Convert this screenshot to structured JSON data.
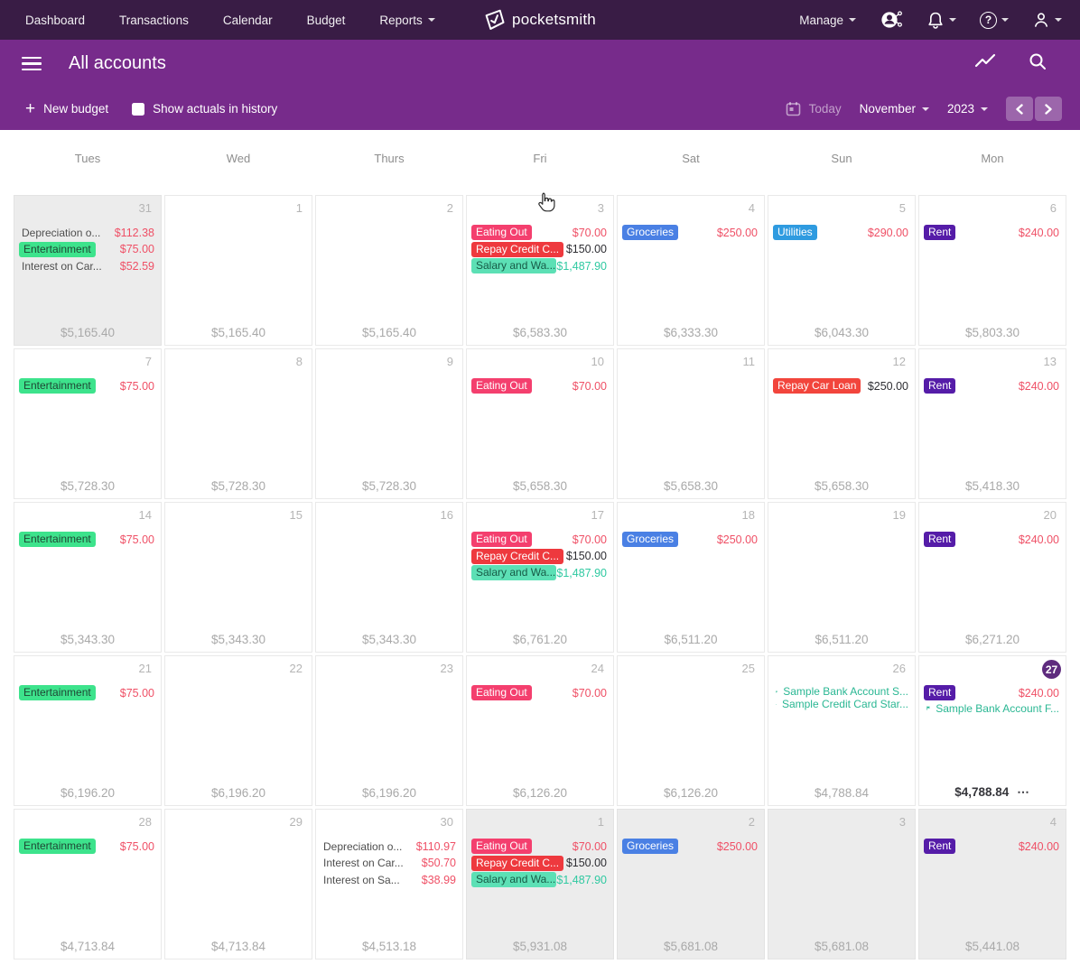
{
  "nav": {
    "left": [
      {
        "label": "Dashboard",
        "dropdown": false
      },
      {
        "label": "Transactions",
        "dropdown": false
      },
      {
        "label": "Calendar",
        "dropdown": false
      },
      {
        "label": "Budget",
        "dropdown": false
      },
      {
        "label": "Reports",
        "dropdown": true
      }
    ],
    "logo_text": "pocketsmith",
    "manage": "Manage",
    "right_icons": [
      "advisor-icon",
      "notifications-icon",
      "help-icon",
      "account-icon"
    ]
  },
  "header": {
    "title": "All accounts",
    "icons": [
      "trend-icon",
      "search-icon"
    ]
  },
  "toolbar": {
    "new_budget": "New budget",
    "show_actuals": "Show actuals in history",
    "today": "Today",
    "month": "November",
    "year": "2023"
  },
  "calendar": {
    "weekdays": [
      "Tues",
      "Wed",
      "Thurs",
      "Fri",
      "Sat",
      "Sun",
      "Mon"
    ],
    "categories": {
      "entertainment": {
        "name": "Entertainment",
        "bg": "#3DE38C",
        "fg": "#1F4634"
      },
      "eating_out": {
        "name": "Eating Out",
        "bg": "#F43F6E",
        "fg": "#FFFFFF"
      },
      "repay_credit": {
        "name": "Repay Credit Card",
        "bg": "#EE393E",
        "fg": "#FFFFFF"
      },
      "salary": {
        "name": "Salary and Wages",
        "bg": "#5CE0B5",
        "fg": "#175A46"
      },
      "groceries": {
        "name": "Groceries",
        "bg": "#4A80E4",
        "fg": "#FFFFFF"
      },
      "utilities": {
        "name": "Utilities",
        "bg": "#2F9BE0",
        "fg": "#FFFFFF"
      },
      "rent": {
        "name": "Rent",
        "bg": "#551CA8",
        "fg": "#FFFFFF"
      },
      "repay_car": {
        "name": "Repay Car Loan",
        "bg": "#F2453C",
        "fg": "#FFFFFF"
      }
    },
    "weeks": [
      {
        "days": [
          {
            "num": "31",
            "out": true,
            "entries": [
              {
                "kind": "text",
                "label": "Depreciation o...",
                "amount": "$112.38",
                "amount_style": "expense"
              },
              {
                "kind": "pill",
                "cat": "entertainment",
                "label": "Entertainment",
                "amount": "$75.00",
                "amount_style": "expense"
              },
              {
                "kind": "text",
                "label": "Interest on Car...",
                "amount": "$52.59",
                "amount_style": "expense"
              }
            ],
            "total": "$5,165.40"
          },
          {
            "num": "1",
            "entries": [],
            "total": "$5,165.40"
          },
          {
            "num": "2",
            "entries": [],
            "total": "$5,165.40"
          },
          {
            "num": "3",
            "entries": [
              {
                "kind": "pill",
                "cat": "eating_out",
                "label": "Eating Out",
                "amount": "$70.00",
                "amount_style": "expense"
              },
              {
                "kind": "pill",
                "cat": "repay_credit",
                "label": "Repay Credit C...",
                "amount": "$150.00",
                "amount_style": "transfer"
              },
              {
                "kind": "pill",
                "cat": "salary",
                "label": "Salary and Wa...",
                "amount": "$1,487.90",
                "amount_style": "income"
              }
            ],
            "total": "$6,583.30"
          },
          {
            "num": "4",
            "entries": [
              {
                "kind": "pill",
                "cat": "groceries",
                "label": "Groceries",
                "amount": "$250.00",
                "amount_style": "expense"
              }
            ],
            "total": "$6,333.30"
          },
          {
            "num": "5",
            "entries": [
              {
                "kind": "pill",
                "cat": "utilities",
                "label": "Utilities",
                "amount": "$290.00",
                "amount_style": "expense"
              }
            ],
            "total": "$6,043.30"
          },
          {
            "num": "6",
            "entries": [
              {
                "kind": "pill",
                "cat": "rent",
                "label": "Rent",
                "amount": "$240.00",
                "amount_style": "expense"
              }
            ],
            "total": "$5,803.30"
          }
        ]
      },
      {
        "days": [
          {
            "num": "7",
            "entries": [
              {
                "kind": "pill",
                "cat": "entertainment",
                "label": "Entertainment",
                "amount": "$75.00",
                "amount_style": "expense"
              }
            ],
            "total": "$5,728.30"
          },
          {
            "num": "8",
            "entries": [],
            "total": "$5,728.30"
          },
          {
            "num": "9",
            "entries": [],
            "total": "$5,728.30"
          },
          {
            "num": "10",
            "entries": [
              {
                "kind": "pill",
                "cat": "eating_out",
                "label": "Eating Out",
                "amount": "$70.00",
                "amount_style": "expense"
              }
            ],
            "total": "$5,658.30"
          },
          {
            "num": "11",
            "entries": [],
            "total": "$5,658.30"
          },
          {
            "num": "12",
            "entries": [
              {
                "kind": "pill",
                "cat": "repay_car",
                "label": "Repay Car Loan",
                "amount": "$250.00",
                "amount_style": "transfer"
              }
            ],
            "total": "$5,658.30"
          },
          {
            "num": "13",
            "entries": [
              {
                "kind": "pill",
                "cat": "rent",
                "label": "Rent",
                "amount": "$240.00",
                "amount_style": "expense"
              }
            ],
            "total": "$5,418.30"
          }
        ]
      },
      {
        "days": [
          {
            "num": "14",
            "entries": [
              {
                "kind": "pill",
                "cat": "entertainment",
                "label": "Entertainment",
                "amount": "$75.00",
                "amount_style": "expense"
              }
            ],
            "total": "$5,343.30"
          },
          {
            "num": "15",
            "entries": [],
            "total": "$5,343.30"
          },
          {
            "num": "16",
            "entries": [],
            "total": "$5,343.30"
          },
          {
            "num": "17",
            "entries": [
              {
                "kind": "pill",
                "cat": "eating_out",
                "label": "Eating Out",
                "amount": "$70.00",
                "amount_style": "expense"
              },
              {
                "kind": "pill",
                "cat": "repay_credit",
                "label": "Repay Credit C...",
                "amount": "$150.00",
                "amount_style": "transfer"
              },
              {
                "kind": "pill",
                "cat": "salary",
                "label": "Salary and Wa...",
                "amount": "$1,487.90",
                "amount_style": "income"
              }
            ],
            "total": "$6,761.20"
          },
          {
            "num": "18",
            "entries": [
              {
                "kind": "pill",
                "cat": "groceries",
                "label": "Groceries",
                "amount": "$250.00",
                "amount_style": "expense"
              }
            ],
            "total": "$6,511.20"
          },
          {
            "num": "19",
            "entries": [],
            "total": "$6,511.20"
          },
          {
            "num": "20",
            "entries": [
              {
                "kind": "pill",
                "cat": "rent",
                "label": "Rent",
                "amount": "$240.00",
                "amount_style": "expense"
              }
            ],
            "total": "$6,271.20"
          }
        ]
      },
      {
        "days": [
          {
            "num": "21",
            "entries": [
              {
                "kind": "pill",
                "cat": "entertainment",
                "label": "Entertainment",
                "amount": "$75.00",
                "amount_style": "expense"
              }
            ],
            "total": "$6,196.20"
          },
          {
            "num": "22",
            "entries": [],
            "total": "$6,196.20"
          },
          {
            "num": "23",
            "entries": [],
            "total": "$6,196.20"
          },
          {
            "num": "24",
            "entries": [
              {
                "kind": "pill",
                "cat": "eating_out",
                "label": "Eating Out",
                "amount": "$70.00",
                "amount_style": "expense"
              }
            ],
            "total": "$6,126.20"
          },
          {
            "num": "25",
            "entries": [],
            "total": "$6,126.20"
          },
          {
            "num": "26",
            "entries": [
              {
                "kind": "flag",
                "label": "Sample Bank Account S..."
              },
              {
                "kind": "flag",
                "label": "Sample Credit Card Star..."
              }
            ],
            "total": "$4,788.84"
          },
          {
            "num": "27",
            "today": true,
            "entries": [
              {
                "kind": "pill",
                "cat": "rent",
                "label": "Rent",
                "amount": "$240.00",
                "amount_style": "expense"
              },
              {
                "kind": "flag",
                "label": "Sample Bank Account F..."
              }
            ],
            "total": "$4,788.84",
            "total_emphasis": true,
            "ellipsis": "⋯"
          }
        ]
      },
      {
        "days": [
          {
            "num": "28",
            "entries": [
              {
                "kind": "pill",
                "cat": "entertainment",
                "label": "Entertainment",
                "amount": "$75.00",
                "amount_style": "expense"
              }
            ],
            "total": "$4,713.84"
          },
          {
            "num": "29",
            "entries": [],
            "total": "$4,713.84"
          },
          {
            "num": "30",
            "entries": [
              {
                "kind": "text",
                "label": "Depreciation o...",
                "amount": "$110.97",
                "amount_style": "expense"
              },
              {
                "kind": "text",
                "label": "Interest on Car...",
                "amount": "$50.70",
                "amount_style": "expense"
              },
              {
                "kind": "text",
                "label": "Interest on Sa...",
                "amount": "$38.99",
                "amount_style": "expense"
              }
            ],
            "total": "$4,513.18"
          },
          {
            "num": "1",
            "out": true,
            "entries": [
              {
                "kind": "pill",
                "cat": "eating_out",
                "label": "Eating Out",
                "amount": "$70.00",
                "amount_style": "expense"
              },
              {
                "kind": "pill",
                "cat": "repay_credit",
                "label": "Repay Credit C...",
                "amount": "$150.00",
                "amount_style": "transfer"
              },
              {
                "kind": "pill",
                "cat": "salary",
                "label": "Salary and Wa...",
                "amount": "$1,487.90",
                "amount_style": "income"
              }
            ],
            "total": "$5,931.08"
          },
          {
            "num": "2",
            "out": true,
            "entries": [
              {
                "kind": "pill",
                "cat": "groceries",
                "label": "Groceries",
                "amount": "$250.00",
                "amount_style": "expense"
              }
            ],
            "total": "$5,681.08"
          },
          {
            "num": "3",
            "out": true,
            "entries": [],
            "total": "$5,681.08"
          },
          {
            "num": "4",
            "out": true,
            "entries": [
              {
                "kind": "pill",
                "cat": "rent",
                "label": "Rent",
                "amount": "$240.00",
                "amount_style": "expense"
              }
            ],
            "total": "$5,441.08"
          }
        ]
      }
    ]
  }
}
